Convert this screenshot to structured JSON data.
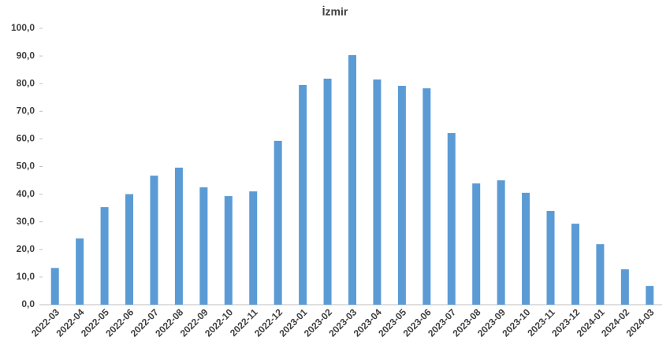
{
  "chart_data": {
    "type": "bar",
    "title": "İzmir",
    "categories": [
      "2022-03",
      "2022-04",
      "2022-05",
      "2022-06",
      "2022-07",
      "2022-08",
      "2022-09",
      "2022-10",
      "2022-11",
      "2022-12",
      "2023-01",
      "2023-02",
      "2023-03",
      "2023-04",
      "2023-05",
      "2023-06",
      "2023-07",
      "2023-08",
      "2023-09",
      "2023-10",
      "2023-11",
      "2023-12",
      "2024-01",
      "2024-02",
      "2024-03"
    ],
    "values": [
      13.3,
      24,
      35.3,
      40,
      46.7,
      49.6,
      42.5,
      39.3,
      41,
      59.3,
      79.5,
      81.8,
      90.3,
      81.5,
      79.2,
      78.3,
      62.1,
      43.9,
      45,
      40.5,
      33.9,
      29.3,
      21.9,
      12.8,
      6.8
    ],
    "color": "#5b9bd5",
    "ylim": [
      0,
      100
    ],
    "yticks": [
      {
        "value": 0,
        "label": "0,0"
      },
      {
        "value": 10,
        "label": "10,0"
      },
      {
        "value": 20,
        "label": "20,0"
      },
      {
        "value": 30,
        "label": "30,0"
      },
      {
        "value": 40,
        "label": "40,0"
      },
      {
        "value": 50,
        "label": "50,0"
      },
      {
        "value": 60,
        "label": "60,0"
      },
      {
        "value": 70,
        "label": "70,0"
      },
      {
        "value": 80,
        "label": "80,0"
      },
      {
        "value": 90,
        "label": "90,0"
      },
      {
        "value": 100,
        "label": "100,0"
      }
    ],
    "grid": false
  }
}
